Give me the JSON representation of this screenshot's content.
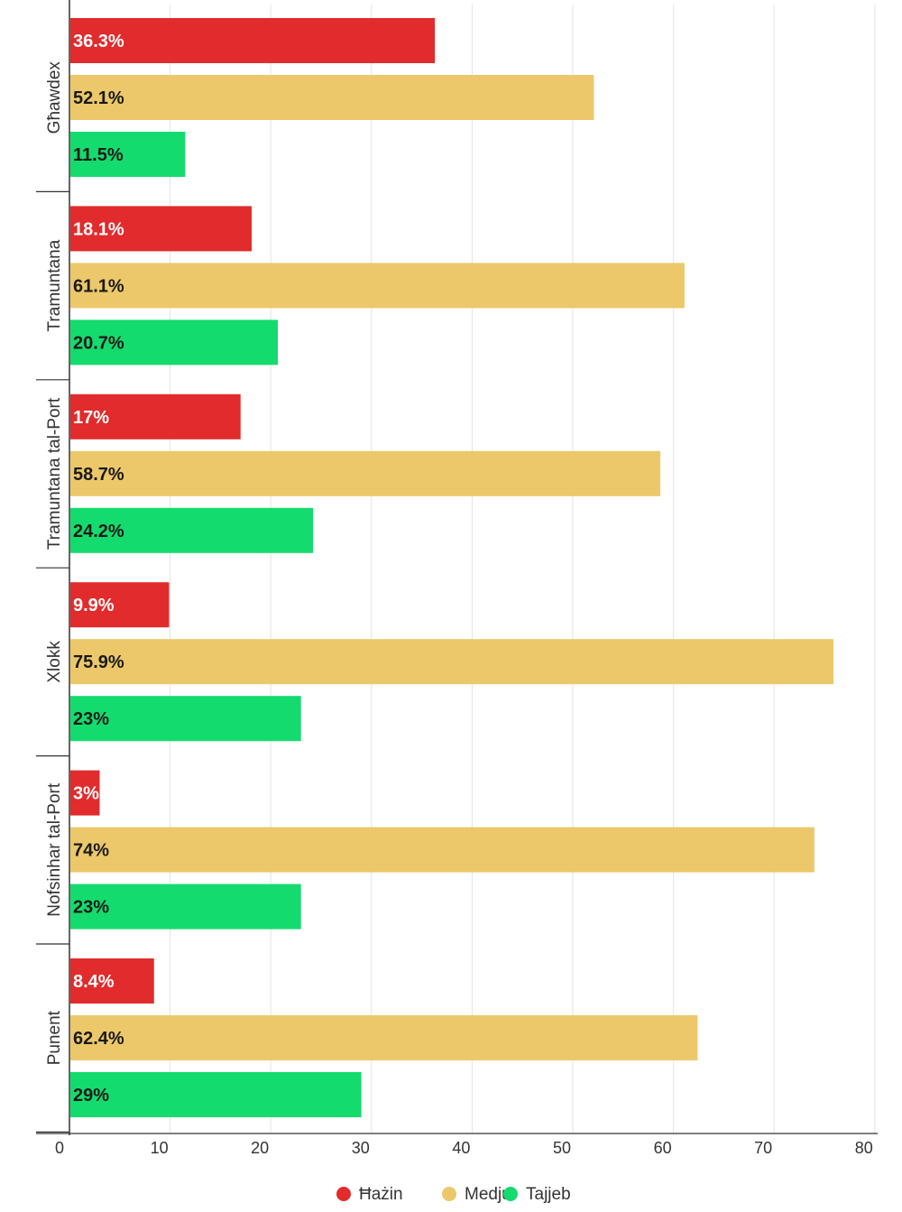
{
  "chart_data": {
    "type": "bar",
    "orientation": "horizontal",
    "categories": [
      "Għawdex",
      "Tramuntana",
      "Tramuntana tal-Port",
      "Xlokk",
      "Nofsinhar tal-Port",
      "Punent"
    ],
    "series": [
      {
        "name": "Ħażin",
        "color": "#e12b2c",
        "label_color": "#ffffff",
        "values": [
          36.3,
          18.1,
          17,
          9.9,
          3,
          8.4
        ],
        "labels": [
          "36.3%",
          "18.1%",
          "17%",
          "9.9%",
          "3%",
          "8.4%"
        ]
      },
      {
        "name": "Medju",
        "color": "#ecc86a",
        "label_color": "#1a1a1a",
        "values": [
          52.1,
          61.1,
          58.7,
          75.9,
          74,
          62.4
        ],
        "labels": [
          "52.1%",
          "61.1%",
          "58.7%",
          "75.9%",
          "74%",
          "62.4%"
        ]
      },
      {
        "name": "Tajjeb",
        "color": "#14db6d",
        "label_color": "#1a1a1a",
        "values": [
          11.5,
          20.7,
          24.2,
          23,
          23,
          29
        ],
        "labels": [
          "11.5%",
          "20.7%",
          "24.2%",
          "23%",
          "23%",
          "29%"
        ]
      }
    ],
    "xlim": [
      0,
      80
    ],
    "xticks": [
      0,
      10,
      20,
      30,
      40,
      50,
      60,
      70,
      80
    ],
    "grid": true,
    "legend_position": "bottom-center",
    "title": "",
    "xlabel": "",
    "ylabel": ""
  }
}
